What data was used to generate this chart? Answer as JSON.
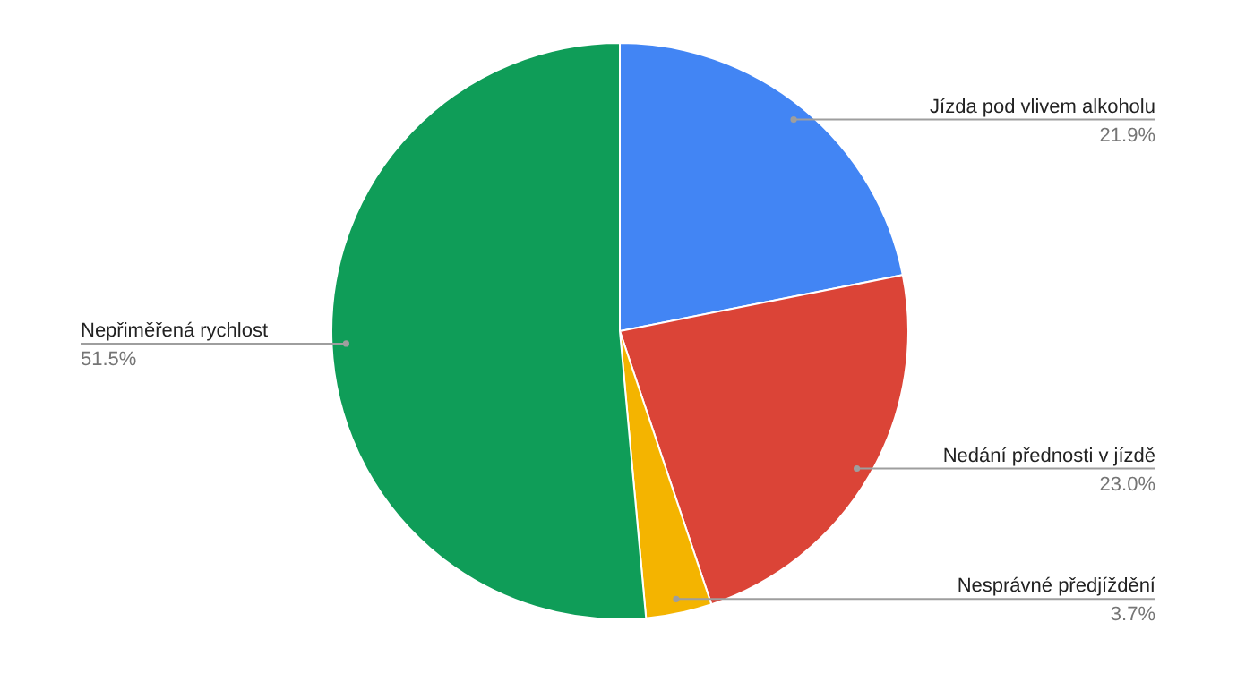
{
  "chart_data": {
    "type": "pie",
    "categories": [
      "Jízda pod vlivem alkoholu",
      "Nedání přednosti v jízdě",
      "Nesprávné předjíždění",
      "Nepřiměřená rychlost"
    ],
    "values": [
      21.9,
      23.0,
      3.7,
      51.5
    ],
    "colors": [
      "#4285f4",
      "#db4437",
      "#f4b400",
      "#0f9d58"
    ],
    "value_labels": [
      "21.9%",
      "23.0%",
      "3.7%",
      "51.5%"
    ],
    "legend": false
  }
}
